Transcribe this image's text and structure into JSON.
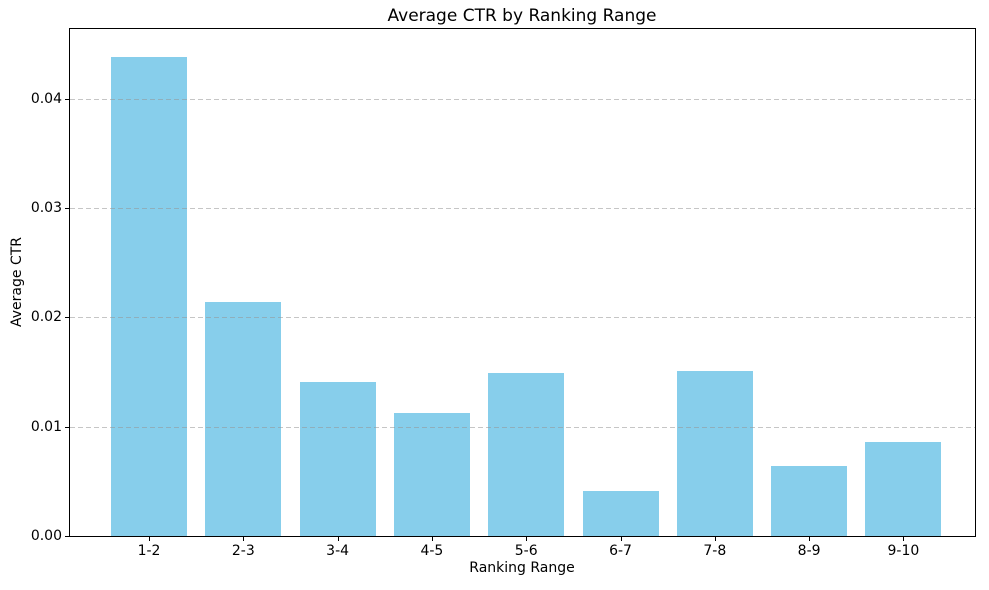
{
  "chart_data": {
    "type": "bar",
    "title": "Average CTR by Ranking Range",
    "xlabel": "Ranking Range",
    "ylabel": "Average CTR",
    "categories": [
      "1-2",
      "2-3",
      "3-4",
      "4-5",
      "5-6",
      "6-7",
      "7-8",
      "8-9",
      "9-10"
    ],
    "values": [
      0.0438,
      0.0214,
      0.0141,
      0.0113,
      0.0149,
      0.0041,
      0.0151,
      0.0064,
      0.0086
    ],
    "ylim": [
      0,
      0.0464
    ],
    "yticks": [
      0,
      0.01,
      0.02,
      0.03,
      0.04
    ],
    "ytick_labels": [
      "0.00",
      "0.01",
      "0.02",
      "0.03",
      "0.04"
    ],
    "bar_color": "#87CEEB",
    "grid": "horizontal-dashed",
    "grid_color": "#969696",
    "legend": "none",
    "background_color": "#ffffff"
  }
}
